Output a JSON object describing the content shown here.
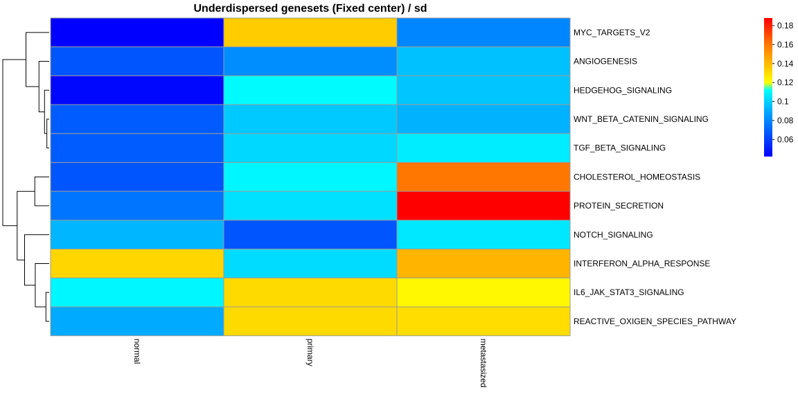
{
  "chart_data": {
    "type": "heatmap",
    "title": "Underdispersed genesets (Fixed center) / sd",
    "columns": [
      "normal",
      "primary",
      "metastasized"
    ],
    "rows": [
      "MYC_TARGETS_V2",
      "ANGIOGENESIS",
      "HEDGEHOG_SIGNALING",
      "WNT_BETA_CATENIN_SIGNALING",
      "TGF_BETA_SIGNALING",
      "CHOLESTEROL_HOMEOSTASIS",
      "PROTEIN_SECRETION",
      "NOTCH_SIGNALING",
      "INTERFERON_ALPHA_RESPONSE",
      "IL6_JAK_STAT3_SIGNALING",
      "REACTIVE_OXIGEN_SPECIES_PATHWAY"
    ],
    "values": [
      [
        0.042,
        0.135,
        0.08
      ],
      [
        0.066,
        0.082,
        0.096
      ],
      [
        0.044,
        0.111,
        0.097
      ],
      [
        0.068,
        0.098,
        0.092
      ],
      [
        0.068,
        0.102,
        0.107
      ],
      [
        0.066,
        0.11,
        0.16
      ],
      [
        0.075,
        0.104,
        0.188
      ],
      [
        0.093,
        0.066,
        0.106
      ],
      [
        0.132,
        0.103,
        0.142
      ],
      [
        0.11,
        0.131,
        0.122
      ],
      [
        0.09,
        0.131,
        0.13
      ]
    ],
    "legend": {
      "position": "right",
      "min": 0.042,
      "max": 0.188,
      "ticks": [
        0.06,
        0.08,
        0.1,
        0.12,
        0.14,
        0.16,
        0.18
      ],
      "tick_labels": [
        "0.06",
        "0.08",
        "0.1",
        "0.12",
        "0.14",
        "0.16",
        "0.18"
      ],
      "color_stops": [
        {
          "value": 0.042,
          "color": "#0000ff"
        },
        {
          "value": 0.09,
          "color": "#00aaff"
        },
        {
          "value": 0.112,
          "color": "#00ffff"
        },
        {
          "value": 0.12,
          "color": "#ffff00"
        },
        {
          "value": 0.14,
          "color": "#ffbb00"
        },
        {
          "value": 0.16,
          "color": "#ff7700"
        },
        {
          "value": 0.188,
          "color": "#ff0000"
        }
      ]
    },
    "row_dendrogram": {
      "order": [
        0,
        1,
        2,
        3,
        4,
        5,
        6,
        7,
        8,
        9,
        10
      ],
      "merges": [
        {
          "a": 3,
          "b": 4,
          "height": 0.05
        },
        {
          "a": 2,
          "b": "m0",
          "height": 0.1
        },
        {
          "a": 1,
          "b": "m1",
          "height": 0.22
        },
        {
          "a": 0,
          "b": "m2",
          "height": 0.5
        },
        {
          "a": 5,
          "b": 6,
          "height": 0.31
        },
        {
          "a": 9,
          "b": 10,
          "height": 0.07
        },
        {
          "a": 8,
          "b": "m5",
          "height": 0.3
        },
        {
          "a": 7,
          "b": "m6",
          "height": 0.53
        },
        {
          "a": "m4",
          "b": "m7",
          "height": 0.69
        },
        {
          "a": "m3",
          "b": "m8",
          "height": 1.0
        }
      ]
    }
  }
}
